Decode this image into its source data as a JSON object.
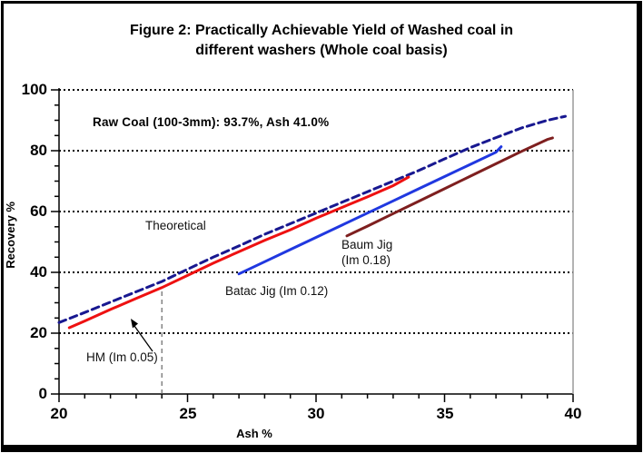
{
  "figure": {
    "border_color": "#000000",
    "background": "#ffffff"
  },
  "chart_data": {
    "type": "line",
    "title": "Figure 2: Practically Achievable Yield of Washed coal in different washers (Whole coal basis)",
    "title_line1": "Figure 2: Practically Achievable Yield of Washed coal in",
    "title_line2": "different washers (Whole coal basis)",
    "annotation": "Raw Coal (100-3mm): 93.7%, Ash 41.0%",
    "xlabel": "Ash %",
    "ylabel": "Recovery %",
    "xlim": [
      20,
      40
    ],
    "ylim": [
      0,
      100
    ],
    "x_major_ticks": [
      20,
      25,
      30,
      35,
      40
    ],
    "x_minor_step": 1,
    "y_major_ticks": [
      0,
      20,
      40,
      60,
      80,
      100
    ],
    "y_minor_step": 5,
    "grid": "horizontal dotted black lines at y major ticks",
    "legend_position": "inline curve labels",
    "reference_line": {
      "x": 24,
      "y_top": 34.5,
      "style": "gray dashed vertical"
    },
    "labels": {
      "theoretical": "Theoretical",
      "hm": "HM (Im 0.05)",
      "batac": "Batac Jig (Im 0.12)",
      "baum_line1": "Baum Jig",
      "baum_line2": "(Im 0.18)"
    },
    "series": [
      {
        "name": "Theoretical",
        "color": "#181890",
        "style": "dashed",
        "points": [
          [
            20,
            23.5
          ],
          [
            21,
            26.8
          ],
          [
            22,
            30.2
          ],
          [
            23,
            33.6
          ],
          [
            24,
            37
          ],
          [
            25,
            41
          ],
          [
            26,
            45
          ],
          [
            27,
            48.7
          ],
          [
            28,
            52.5
          ],
          [
            29,
            56
          ],
          [
            30,
            59.5
          ],
          [
            31,
            63
          ],
          [
            32,
            66.5
          ],
          [
            33,
            70
          ],
          [
            34,
            73.5
          ],
          [
            35,
            77.3
          ],
          [
            36,
            81
          ],
          [
            37,
            84.3
          ],
          [
            38,
            87.5
          ],
          [
            39,
            90
          ],
          [
            39.7,
            91.3
          ]
        ]
      },
      {
        "name": "HM (Im 0.05)",
        "color": "#ee1111",
        "style": "solid",
        "points": [
          [
            20.4,
            21.8
          ],
          [
            21,
            24
          ],
          [
            22,
            27.8
          ],
          [
            23,
            31.4
          ],
          [
            24,
            35
          ],
          [
            25,
            39
          ],
          [
            26,
            43
          ],
          [
            27,
            46.8
          ],
          [
            28,
            50.5
          ],
          [
            29,
            54
          ],
          [
            30,
            57.8
          ],
          [
            31,
            61.3
          ],
          [
            32,
            64.8
          ],
          [
            33,
            68.5
          ],
          [
            33.6,
            71.3
          ]
        ]
      },
      {
        "name": "Batac Jig (Im 0.12)",
        "color": "#2038e0",
        "style": "solid",
        "points": [
          [
            27,
            39.5
          ],
          [
            28,
            43.5
          ],
          [
            29,
            47.5
          ],
          [
            30,
            51.5
          ],
          [
            31,
            55.5
          ],
          [
            32,
            59.5
          ],
          [
            33,
            63.5
          ],
          [
            34,
            67.5
          ],
          [
            35,
            71.5
          ],
          [
            36,
            75.5
          ],
          [
            37,
            79.5
          ],
          [
            37.2,
            81.3
          ]
        ]
      },
      {
        "name": "Baum Jig (Im 0.18)",
        "color": "#7e1f1f",
        "style": "solid",
        "points": [
          [
            31.2,
            52
          ],
          [
            32,
            55.2
          ],
          [
            33,
            59.3
          ],
          [
            34,
            63.4
          ],
          [
            35,
            67.5
          ],
          [
            36,
            71.6
          ],
          [
            37,
            75.7
          ],
          [
            38,
            79.8
          ],
          [
            39,
            83.7
          ],
          [
            39.2,
            84.2
          ]
        ]
      }
    ]
  }
}
